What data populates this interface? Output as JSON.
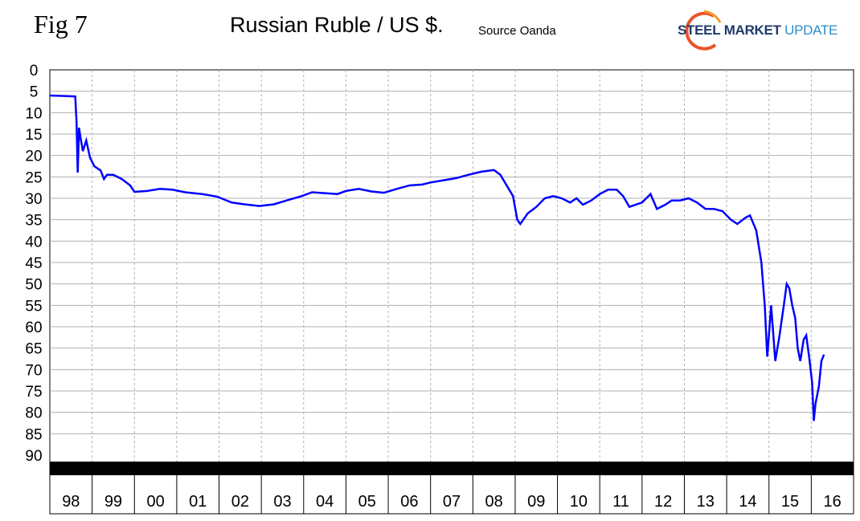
{
  "header": {
    "fig_label": "Fig 7",
    "title": "Russian Ruble / US $.",
    "source": "Source Oanda",
    "logo": {
      "word1": "STEEL",
      "word2": "MARKET",
      "word3": "UPDATE"
    }
  },
  "colors": {
    "line": "#0000ff",
    "grid": "#b0b0b0",
    "band": "#000000"
  },
  "chart_data": {
    "type": "line",
    "title": "Russian Ruble / US $.",
    "xlabel": "",
    "ylabel": "",
    "y_inverted": true,
    "ylim": [
      0,
      90
    ],
    "y_ticks": [
      "0",
      "5",
      "10",
      "15",
      "20",
      "25",
      "30",
      "35",
      "40",
      "45",
      "50",
      "55",
      "60",
      "65",
      "70",
      "75",
      "80",
      "85",
      "90"
    ],
    "x_categories": [
      "98",
      "99",
      "00",
      "01",
      "02",
      "03",
      "04",
      "05",
      "06",
      "07",
      "08",
      "09",
      "10",
      "11",
      "12",
      "13",
      "14",
      "15",
      "16"
    ],
    "grid": true,
    "series": [
      {
        "name": "",
        "points": [
          [
            1998.0,
            6.0
          ],
          [
            1998.3,
            6.1
          ],
          [
            1998.6,
            6.2
          ],
          [
            1998.63,
            12.0
          ],
          [
            1998.66,
            24.0
          ],
          [
            1998.69,
            13.5
          ],
          [
            1998.72,
            15.5
          ],
          [
            1998.78,
            19.0
          ],
          [
            1998.86,
            16.5
          ],
          [
            1998.95,
            20.5
          ],
          [
            1999.05,
            22.5
          ],
          [
            1999.2,
            23.5
          ],
          [
            1999.28,
            25.5
          ],
          [
            1999.35,
            24.5
          ],
          [
            1999.5,
            24.5
          ],
          [
            1999.7,
            25.5
          ],
          [
            1999.9,
            27.0
          ],
          [
            2000.0,
            28.5
          ],
          [
            2000.3,
            28.3
          ],
          [
            2000.6,
            27.8
          ],
          [
            2000.9,
            28.0
          ],
          [
            2001.2,
            28.6
          ],
          [
            2001.6,
            29.0
          ],
          [
            2001.95,
            29.6
          ],
          [
            2002.3,
            31.0
          ],
          [
            2002.6,
            31.4
          ],
          [
            2002.95,
            31.8
          ],
          [
            2003.3,
            31.4
          ],
          [
            2003.6,
            30.5
          ],
          [
            2003.95,
            29.5
          ],
          [
            2004.2,
            28.6
          ],
          [
            2004.5,
            28.8
          ],
          [
            2004.8,
            29.0
          ],
          [
            2005.0,
            28.3
          ],
          [
            2005.3,
            27.8
          ],
          [
            2005.6,
            28.4
          ],
          [
            2005.9,
            28.7
          ],
          [
            2006.2,
            27.8
          ],
          [
            2006.5,
            27.0
          ],
          [
            2006.8,
            26.8
          ],
          [
            2007.0,
            26.3
          ],
          [
            2007.3,
            25.8
          ],
          [
            2007.6,
            25.3
          ],
          [
            2007.9,
            24.5
          ],
          [
            2008.2,
            23.8
          ],
          [
            2008.5,
            23.4
          ],
          [
            2008.65,
            24.5
          ],
          [
            2008.8,
            27.0
          ],
          [
            2008.95,
            29.5
          ],
          [
            2009.05,
            35.0
          ],
          [
            2009.12,
            36.0
          ],
          [
            2009.3,
            33.5
          ],
          [
            2009.5,
            32.0
          ],
          [
            2009.7,
            30.0
          ],
          [
            2009.9,
            29.5
          ],
          [
            2010.1,
            30.0
          ],
          [
            2010.3,
            31.0
          ],
          [
            2010.45,
            30.0
          ],
          [
            2010.6,
            31.5
          ],
          [
            2010.8,
            30.5
          ],
          [
            2011.0,
            29.0
          ],
          [
            2011.2,
            28.0
          ],
          [
            2011.4,
            28.0
          ],
          [
            2011.55,
            29.5
          ],
          [
            2011.7,
            32.0
          ],
          [
            2011.85,
            31.5
          ],
          [
            2012.0,
            31.0
          ],
          [
            2012.2,
            29.0
          ],
          [
            2012.35,
            32.5
          ],
          [
            2012.55,
            31.5
          ],
          [
            2012.7,
            30.5
          ],
          [
            2012.9,
            30.5
          ],
          [
            2013.1,
            30.0
          ],
          [
            2013.3,
            31.0
          ],
          [
            2013.5,
            32.5
          ],
          [
            2013.7,
            32.5
          ],
          [
            2013.9,
            33.0
          ],
          [
            2014.1,
            35.0
          ],
          [
            2014.25,
            36.0
          ],
          [
            2014.45,
            34.5
          ],
          [
            2014.55,
            34.0
          ],
          [
            2014.7,
            37.5
          ],
          [
            2014.82,
            45.0
          ],
          [
            2014.9,
            55.0
          ],
          [
            2014.96,
            67.0
          ],
          [
            2015.0,
            62.0
          ],
          [
            2015.05,
            55.0
          ],
          [
            2015.15,
            68.0
          ],
          [
            2015.25,
            62.0
          ],
          [
            2015.35,
            55.0
          ],
          [
            2015.42,
            50.0
          ],
          [
            2015.48,
            51.0
          ],
          [
            2015.55,
            55.0
          ],
          [
            2015.62,
            58.0
          ],
          [
            2015.68,
            65.0
          ],
          [
            2015.74,
            68.0
          ],
          [
            2015.82,
            63.0
          ],
          [
            2015.88,
            62.0
          ],
          [
            2015.95,
            67.0
          ],
          [
            2016.02,
            73.0
          ],
          [
            2016.06,
            82.0
          ],
          [
            2016.1,
            78.0
          ],
          [
            2016.18,
            74.0
          ],
          [
            2016.24,
            68.0
          ],
          [
            2016.3,
            66.5
          ]
        ]
      }
    ]
  }
}
